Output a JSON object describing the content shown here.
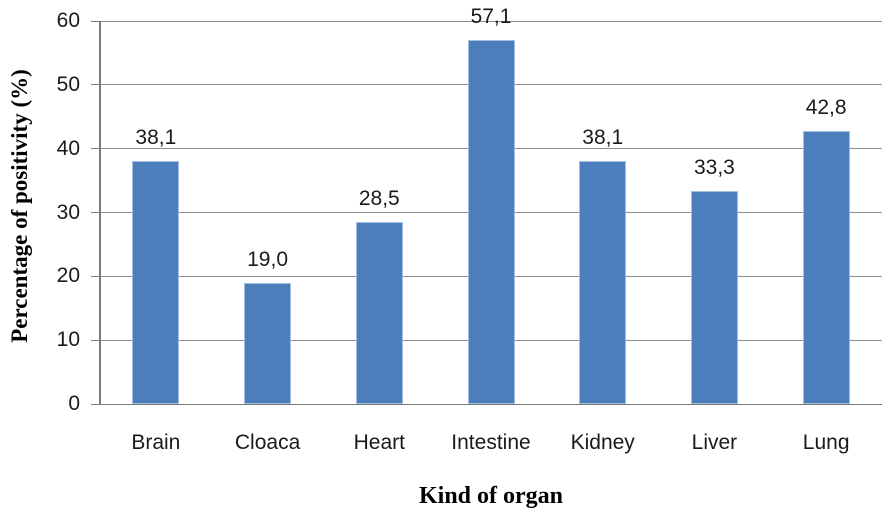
{
  "chart_data": {
    "type": "bar",
    "title": "",
    "xlabel": "Kind of organ",
    "ylabel": "Percentage of positivity (%)",
    "categories": [
      "Brain",
      "Cloaca",
      "Heart",
      "Intestine",
      "Kidney",
      "Liver",
      "Lung"
    ],
    "values": [
      38.1,
      19.0,
      28.5,
      57.1,
      38.1,
      33.3,
      42.8
    ],
    "value_labels": [
      "38,1",
      "19,0",
      "28,5",
      "57,1",
      "38,1",
      "33,3",
      "42,8"
    ],
    "ylim": [
      0,
      60
    ],
    "ytick_interval": 10,
    "ytick_labels": [
      "0",
      "10",
      "20",
      "30",
      "40",
      "50",
      "60"
    ],
    "grid": true,
    "legend_position": "none",
    "colors": {
      "bar_fill": "#4d7ebc",
      "bar_border": "#a2bfdf",
      "gridline": "#8c8c8c",
      "axis_line": "#7a7a7a",
      "label_text": "#1a1a1a",
      "axis_title_text": "#000000",
      "background": "#ffffff"
    }
  }
}
